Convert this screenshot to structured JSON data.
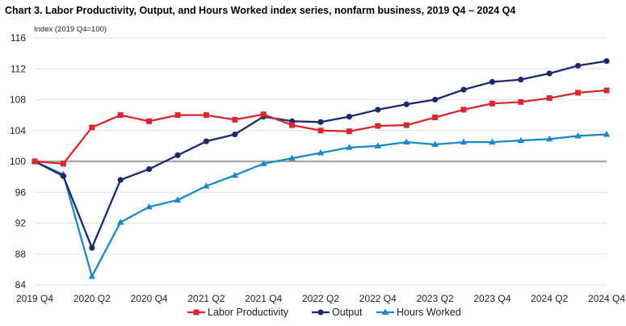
{
  "chart_data": {
    "type": "line",
    "title": "Chart 3. Labor Productivity, Output, and Hours Worked index series, nonfarm business, 2019 Q4 – 2024 Q4",
    "ylabel": "Index (2019 Q4=100)",
    "xlabel": "",
    "ylim": [
      84,
      116
    ],
    "yticks": [
      84,
      88,
      92,
      96,
      100,
      104,
      108,
      112,
      116
    ],
    "reference_line": 100,
    "grid": true,
    "legend_position": "bottom",
    "categories": [
      "2019 Q4",
      "2020 Q1",
      "2020 Q2",
      "2020 Q3",
      "2020 Q4",
      "2021 Q1",
      "2021 Q2",
      "2021 Q3",
      "2021 Q4",
      "2022 Q1",
      "2022 Q2",
      "2022 Q3",
      "2022 Q4",
      "2023 Q1",
      "2023 Q2",
      "2023 Q3",
      "2023 Q4",
      "2024 Q1",
      "2024 Q2",
      "2024 Q3",
      "2024 Q4"
    ],
    "xtick_labels": [
      "2019 Q4",
      "2020 Q2",
      "2020 Q4",
      "2021 Q2",
      "2021 Q4",
      "2022 Q2",
      "2022 Q4",
      "2023 Q2",
      "2023 Q4",
      "2024 Q2",
      "2024 Q4"
    ],
    "series": [
      {
        "name": "Labor Productivity",
        "color": "#d7282f",
        "marker": "square",
        "values": [
          100.0,
          99.7,
          104.4,
          106.0,
          105.2,
          106.0,
          106.0,
          105.4,
          106.1,
          104.7,
          104.0,
          103.9,
          104.6,
          104.7,
          105.7,
          106.7,
          107.5,
          107.7,
          108.2,
          108.9,
          109.2
        ]
      },
      {
        "name": "Output",
        "color": "#1b2a6b",
        "marker": "circle",
        "values": [
          100.0,
          98.1,
          88.8,
          97.6,
          99.0,
          100.8,
          102.6,
          103.5,
          105.8,
          105.2,
          105.1,
          105.8,
          106.7,
          107.4,
          108.0,
          109.3,
          110.3,
          110.6,
          111.4,
          112.4,
          113.0
        ]
      },
      {
        "name": "Hours Worked",
        "color": "#1a8ac6",
        "marker": "triangle",
        "values": [
          100.0,
          98.3,
          85.1,
          92.1,
          94.1,
          95.0,
          96.8,
          98.2,
          99.7,
          100.4,
          101.1,
          101.8,
          102.0,
          102.5,
          102.2,
          102.5,
          102.5,
          102.7,
          102.9,
          103.3,
          103.5
        ]
      }
    ]
  }
}
